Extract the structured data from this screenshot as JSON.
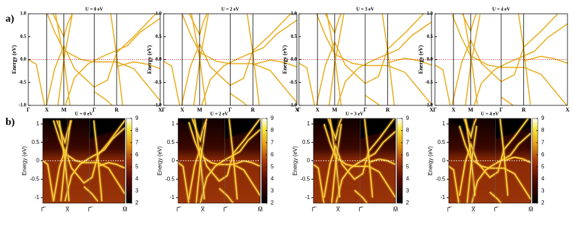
{
  "panel_a": {
    "label": "a)",
    "y_label": "Energy (eV)",
    "yticks": [
      {
        "value": 1,
        "label": "1.0"
      },
      {
        "value": 0.5,
        "label": "0.5"
      },
      {
        "value": 0,
        "label": "0.0"
      },
      {
        "value": -0.5,
        "label": "-0.5"
      },
      {
        "value": -1,
        "label": "-1.0"
      }
    ],
    "kpoints": [
      "Γ",
      "X",
      "M",
      "Γ",
      "R",
      "X"
    ],
    "plots": [
      {
        "title": "U = 0 eV"
      },
      {
        "title": "U = 2 eV"
      },
      {
        "title": "U = 3 eV"
      },
      {
        "title": "U = 4 eV"
      }
    ]
  },
  "panel_b": {
    "label": "b)",
    "y_label": "Energy (eV)",
    "yticks": [
      {
        "value": 1,
        "label": "1"
      },
      {
        "value": 0.5,
        "label": "0.5"
      },
      {
        "value": 0,
        "label": "0"
      },
      {
        "value": -0.5,
        "label": "-0.5"
      },
      {
        "value": -1,
        "label": "-1"
      }
    ],
    "kpoints": [
      "Γ̅",
      "X̅",
      "Γ̅",
      "M̅"
    ],
    "colorbar_ticks": [
      9,
      8,
      7,
      6,
      5,
      4,
      3,
      2
    ],
    "plots": [
      {
        "title": "U = 0 eV"
      },
      {
        "title": "U = 2 eV"
      },
      {
        "title": "U = 3 eV"
      },
      {
        "title": "U = 4 eV"
      }
    ]
  }
}
